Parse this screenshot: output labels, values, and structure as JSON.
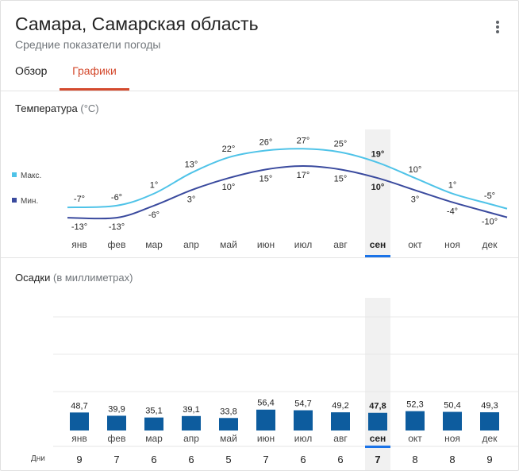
{
  "header": {
    "title": "Самара, Самарская область",
    "subtitle": "Средние показатели погоды"
  },
  "tabs": [
    {
      "label": "Обзор",
      "active": false
    },
    {
      "label": "Графики",
      "active": true
    }
  ],
  "months": [
    "янв",
    "фев",
    "мар",
    "апр",
    "май",
    "июн",
    "июл",
    "авг",
    "сен",
    "окт",
    "ноя",
    "дек"
  ],
  "selected_month_index": 8,
  "temperature": {
    "title": "Температура",
    "unit": "(°C)",
    "legend_max": "Макс.",
    "legend_min": "Мин.",
    "color_max": "#4fc3e8",
    "color_min": "#3a4a9e"
  },
  "precipitation": {
    "title": "Осадки",
    "unit": "(в миллиметрах)",
    "bar_color": "#0d5c9e",
    "days_label": "Дни"
  },
  "chart_data": [
    {
      "type": "line",
      "categories": [
        "янв",
        "фев",
        "мар",
        "апр",
        "май",
        "июн",
        "июл",
        "авг",
        "сен",
        "окт",
        "ноя",
        "дек"
      ],
      "series": [
        {
          "name": "Макс.",
          "values": [
            -7,
            -6,
            1,
            13,
            22,
            26,
            27,
            25,
            19,
            10,
            1,
            -5
          ]
        },
        {
          "name": "Мин.",
          "values": [
            -13,
            -13,
            -6,
            3,
            10,
            15,
            17,
            15,
            10,
            3,
            -4,
            -10
          ]
        }
      ],
      "labels_max": [
        "-7°",
        "-6°",
        "1°",
        "13°",
        "22°",
        "26°",
        "27°",
        "25°",
        "19°",
        "10°",
        "1°",
        "-5°"
      ],
      "labels_min": [
        "-13°",
        "-13°",
        "-6°",
        "3°",
        "10°",
        "15°",
        "17°",
        "15°",
        "10°",
        "3°",
        "-4°",
        "-10°"
      ]
    },
    {
      "type": "bar",
      "categories": [
        "янв",
        "фев",
        "мар",
        "апр",
        "май",
        "июн",
        "июл",
        "авг",
        "сен",
        "окт",
        "ноя",
        "дек"
      ],
      "values": [
        48.7,
        39.9,
        35.1,
        39.1,
        33.8,
        56.4,
        54.7,
        49.2,
        47.8,
        52.3,
        50.4,
        49.3
      ],
      "value_labels": [
        "48,7",
        "39,9",
        "35,1",
        "39,1",
        "33,8",
        "56,4",
        "54,7",
        "49,2",
        "47,8",
        "52,3",
        "50,4",
        "49,3"
      ],
      "days": [
        "9",
        "7",
        "6",
        "6",
        "5",
        "7",
        "6",
        "6",
        "7",
        "8",
        "8",
        "9"
      ]
    }
  ]
}
